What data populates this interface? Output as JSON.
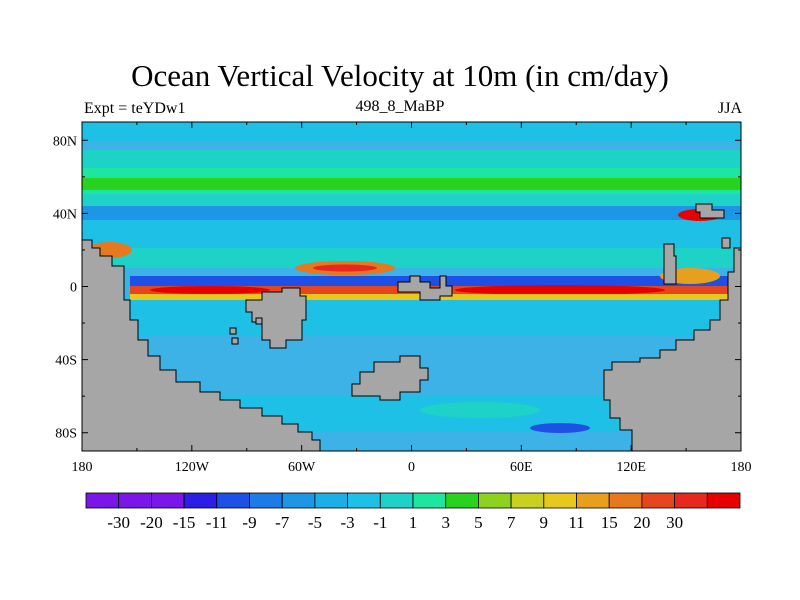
{
  "figure": {
    "title": "Ocean Vertical Velocity at 10m (in cm/day)",
    "left_label": "Expt = teYDw1",
    "center_label": "498_8_MaBP",
    "right_label": "JJA"
  },
  "map": {
    "y_ticks": [
      {
        "value": 80,
        "label": "80N"
      },
      {
        "value": 40,
        "label": "40N"
      },
      {
        "value": 0,
        "label": "0"
      },
      {
        "value": -40,
        "label": "40S"
      },
      {
        "value": -80,
        "label": "80S"
      }
    ],
    "x_ticks": [
      {
        "value": -180,
        "label": "180"
      },
      {
        "value": -120,
        "label": "120W"
      },
      {
        "value": -60,
        "label": "60W"
      },
      {
        "value": 0,
        "label": "0"
      },
      {
        "value": 60,
        "label": "60E"
      },
      {
        "value": 120,
        "label": "120E"
      },
      {
        "value": 180,
        "label": "180"
      }
    ],
    "land_color": "#a6a6a6",
    "ocean_background_color": "#3cb2e6"
  },
  "colorbar": {
    "colors": [
      "#7a16e6",
      "#7a16e6",
      "#7a16e6",
      "#2d1ee6",
      "#1e50e6",
      "#1e7ae6",
      "#1e96e6",
      "#1eaee6",
      "#1ec0e6",
      "#1ed2c8",
      "#1ee6a0",
      "#28d21e",
      "#8cd21e",
      "#c8d21e",
      "#e6c81e",
      "#e6a01e",
      "#e6781e",
      "#e6461e",
      "#e6281e",
      "#e60000"
    ],
    "labels": [
      "-30",
      "-20",
      "-15",
      "-11",
      "-9",
      "-7",
      "-5",
      "-3",
      "-1",
      "1",
      "3",
      "5",
      "7",
      "9",
      "11",
      "15",
      "20",
      "30"
    ]
  }
}
